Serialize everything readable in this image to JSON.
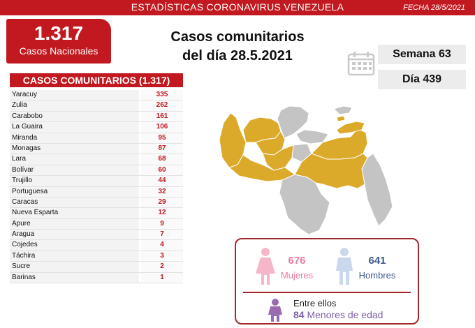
{
  "header": {
    "title": "ESTADÍSTICAS CORONAVIRUS VENEZUELA",
    "date": "FECHA 28/5/2021"
  },
  "total": {
    "value": "1.317",
    "label": "Casos Nacionales"
  },
  "main_title": {
    "line1": "Casos comunitarios",
    "line2": "del día 28.5.2021"
  },
  "calendar": {
    "week": "Semana 63",
    "day": "Día 439"
  },
  "chart_data": {
    "type": "table",
    "title": "CASOS COMUNITARIOS (1.317)",
    "rows": [
      {
        "state": "Yaracuy",
        "value": 335
      },
      {
        "state": "Zulia",
        "value": 262
      },
      {
        "state": "Carabobo",
        "value": 161
      },
      {
        "state": "La Guaira",
        "value": 106
      },
      {
        "state": "Miranda",
        "value": 95
      },
      {
        "state": "Monagas",
        "value": 87
      },
      {
        "state": "Lara",
        "value": 68
      },
      {
        "state": "Bolívar",
        "value": 60
      },
      {
        "state": "Trujillo",
        "value": 44
      },
      {
        "state": "Portuguesa",
        "value": 32
      },
      {
        "state": "Caracas",
        "value": 29
      },
      {
        "state": "Nueva Esparta",
        "value": 12
      },
      {
        "state": "Apure",
        "value": 9
      },
      {
        "state": "Aragua",
        "value": 7
      },
      {
        "state": "Cojedes",
        "value": 4
      },
      {
        "state": "Táchira",
        "value": 3
      },
      {
        "state": "Sucre",
        "value": 2
      },
      {
        "state": "Barinas",
        "value": 1
      }
    ]
  },
  "gender": {
    "women_count": "676",
    "women_label": "Mujeres",
    "men_count": "641",
    "men_label": "Hombres",
    "among_label": "Entre ellos",
    "minors_count": "84",
    "minors_label": "Menores de edad"
  },
  "colors": {
    "accent": "#c1191f",
    "map_affected": "#dcaa2b",
    "map_unaffected": "#c4c4c4",
    "women": "#e87aa0",
    "men": "#3d5a8c",
    "minors": "#7b5ea7"
  },
  "map": {
    "affected_states": [
      "Zulia",
      "Falcón",
      "Lara",
      "Yaracuy",
      "Carabobo",
      "Trujillo",
      "Portuguesa",
      "Cojedes",
      "Aragua",
      "La Guaira",
      "Miranda",
      "Caracas",
      "Monagas",
      "Bolívar",
      "Nueva Esparta",
      "Sucre",
      "Táchira",
      "Barinas",
      "Apure"
    ]
  }
}
